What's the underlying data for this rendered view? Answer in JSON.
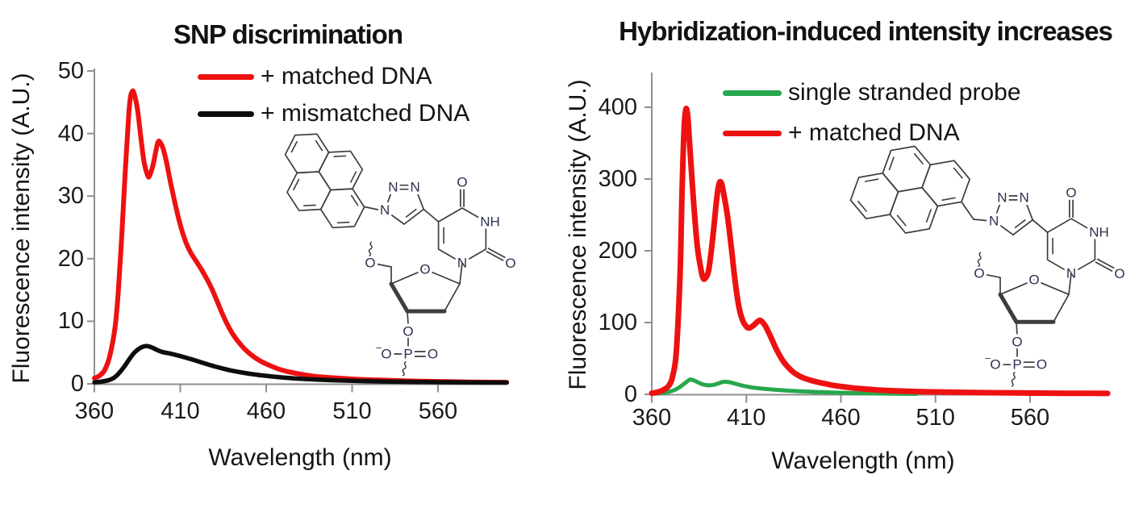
{
  "chart_data": [
    {
      "type": "line",
      "title": "SNP discrimination",
      "xlabel": "Wavelength (nm)",
      "ylabel": "Fluorescence intensity (A.U.)",
      "xlim": [
        360,
        600
      ],
      "ylim": [
        0,
        50
      ],
      "x_ticks": [
        360,
        410,
        460,
        510,
        560
      ],
      "y_ticks": [
        0,
        10,
        20,
        30,
        40,
        50
      ],
      "grid": false,
      "legend_position": "top-inside",
      "series": [
        {
          "name": "+ matched DNA",
          "color": "#ee1111",
          "width": 6,
          "points": [
            [
              360,
              0.9
            ],
            [
              363,
              1.3
            ],
            [
              366,
              2.2
            ],
            [
              369,
              4.5
            ],
            [
              372,
              9
            ],
            [
              374,
              15
            ],
            [
              376,
              24
            ],
            [
              378,
              34
            ],
            [
              380,
              43
            ],
            [
              381,
              45.8
            ],
            [
              382,
              46.7
            ],
            [
              383,
              46.5
            ],
            [
              385,
              44
            ],
            [
              387,
              39.5
            ],
            [
              389,
              35.3
            ],
            [
              391,
              33.3
            ],
            [
              392,
              33.2
            ],
            [
              394,
              34.8
            ],
            [
              396,
              37.5
            ],
            [
              397,
              38.6
            ],
            [
              398,
              38.7
            ],
            [
              400,
              37.6
            ],
            [
              402,
              35.4
            ],
            [
              404,
              32.6
            ],
            [
              407,
              28.8
            ],
            [
              410,
              25.4
            ],
            [
              413,
              22.8
            ],
            [
              416,
              21
            ],
            [
              419,
              19.7
            ],
            [
              422,
              18.4
            ],
            [
              425,
              17
            ],
            [
              428,
              15.4
            ],
            [
              431,
              13.5
            ],
            [
              434,
              11.5
            ],
            [
              437,
              9.7
            ],
            [
              440,
              8.2
            ],
            [
              443,
              7
            ],
            [
              447,
              5.7
            ],
            [
              451,
              4.7
            ],
            [
              455,
              3.9
            ],
            [
              459,
              3.3
            ],
            [
              464,
              2.7
            ],
            [
              469,
              2.2
            ],
            [
              475,
              1.8
            ],
            [
              482,
              1.45
            ],
            [
              490,
              1.15
            ],
            [
              500,
              0.95
            ],
            [
              512,
              0.75
            ],
            [
              526,
              0.6
            ],
            [
              542,
              0.47
            ],
            [
              560,
              0.37
            ],
            [
              578,
              0.3
            ],
            [
              600,
              0.25
            ]
          ]
        },
        {
          "name": "+ mismatched DNA",
          "color": "#0d0d0d",
          "width": 5.5,
          "points": [
            [
              360,
              0.25
            ],
            [
              364,
              0.35
            ],
            [
              368,
              0.55
            ],
            [
              371,
              0.9
            ],
            [
              374,
              1.6
            ],
            [
              377,
              2.6
            ],
            [
              380,
              3.8
            ],
            [
              383,
              4.9
            ],
            [
              386,
              5.6
            ],
            [
              388,
              5.9
            ],
            [
              390,
              6.05
            ],
            [
              392,
              5.95
            ],
            [
              394,
              5.75
            ],
            [
              397,
              5.35
            ],
            [
              400,
              5.05
            ],
            [
              403,
              4.9
            ],
            [
              406,
              4.72
            ],
            [
              409,
              4.5
            ],
            [
              412,
              4.28
            ],
            [
              415,
              4.05
            ],
            [
              418,
              3.8
            ],
            [
              422,
              3.45
            ],
            [
              426,
              3.1
            ],
            [
              430,
              2.78
            ],
            [
              435,
              2.42
            ],
            [
              440,
              2.1
            ],
            [
              446,
              1.8
            ],
            [
              452,
              1.55
            ],
            [
              459,
              1.3
            ],
            [
              467,
              1.08
            ],
            [
              476,
              0.88
            ],
            [
              486,
              0.72
            ],
            [
              498,
              0.58
            ],
            [
              512,
              0.47
            ],
            [
              528,
              0.38
            ],
            [
              545,
              0.31
            ],
            [
              562,
              0.26
            ],
            [
              580,
              0.22
            ],
            [
              600,
              0.2
            ]
          ]
        }
      ]
    },
    {
      "type": "line",
      "title": "Hybridization-induced intensity increases",
      "xlabel": "Wavelength (nm)",
      "ylabel": "Fluorescence intensity (A.U.)",
      "xlim": [
        360,
        601
      ],
      "ylim": [
        0,
        450
      ],
      "x_ticks": [
        360,
        410,
        460,
        510,
        560
      ],
      "y_ticks": [
        0,
        100,
        200,
        300,
        400
      ],
      "grid": false,
      "legend_position": "top-inside",
      "series": [
        {
          "name": "single stranded probe",
          "color": "#28a74c",
          "width": 5,
          "points": [
            [
              360,
              0.8
            ],
            [
              364,
              1.5
            ],
            [
              368,
              3
            ],
            [
              372,
              6
            ],
            [
              375,
              10.5
            ],
            [
              377,
              14.5
            ],
            [
              379,
              18.5
            ],
            [
              380,
              20.3
            ],
            [
              381,
              20.5
            ],
            [
              383,
              18.5
            ],
            [
              385,
              16
            ],
            [
              387,
              13.8
            ],
            [
              389,
              12.8
            ],
            [
              391,
              12.6
            ],
            [
              393,
              13.3
            ],
            [
              395,
              15
            ],
            [
              397,
              16.8
            ],
            [
              398,
              17.4
            ],
            [
              400,
              17.3
            ],
            [
              402,
              16.3
            ],
            [
              404,
              14.8
            ],
            [
              407,
              12.7
            ],
            [
              410,
              11
            ],
            [
              413,
              9.6
            ],
            [
              416,
              8.5
            ],
            [
              420,
              7.5
            ],
            [
              424,
              6.6
            ],
            [
              428,
              5.8
            ],
            [
              433,
              5
            ],
            [
              438,
              4.3
            ],
            [
              444,
              3.6
            ],
            [
              450,
              3
            ],
            [
              457,
              2.4
            ],
            [
              464,
              1.9
            ],
            [
              472,
              1.45
            ],
            [
              480,
              1.1
            ],
            [
              490,
              0.8
            ],
            [
              500,
              0.6
            ]
          ]
        },
        {
          "name": "+ matched DNA",
          "color": "#ee1111",
          "width": 7,
          "points": [
            [
              360,
              1.5
            ],
            [
              363,
              3
            ],
            [
              366,
              6
            ],
            [
              369,
              12
            ],
            [
              371,
              25
            ],
            [
              373,
              60
            ],
            [
              375,
              170
            ],
            [
              376,
              280
            ],
            [
              377,
              365
            ],
            [
              378,
              397
            ],
            [
              379,
              388
            ],
            [
              380,
              350
            ],
            [
              382,
              272
            ],
            [
              384,
              208
            ],
            [
              386,
              174
            ],
            [
              387,
              163
            ],
            [
              388,
              161
            ],
            [
              390,
              172
            ],
            [
              392,
              212
            ],
            [
              394,
              264
            ],
            [
              395,
              286
            ],
            [
              396,
              296
            ],
            [
              397,
              293
            ],
            [
              398,
              280
            ],
            [
              400,
              249
            ],
            [
              402,
              206
            ],
            [
              404,
              159
            ],
            [
              406,
              123
            ],
            [
              408,
              103
            ],
            [
              410,
              94.5
            ],
            [
              411,
              92.5
            ],
            [
              412,
              92.8
            ],
            [
              414,
              96.5
            ],
            [
              416,
              101.5
            ],
            [
              417,
              103
            ],
            [
              418,
              102
            ],
            [
              420,
              95.5
            ],
            [
              422,
              85
            ],
            [
              424,
              73.5
            ],
            [
              426,
              62
            ],
            [
              429,
              48
            ],
            [
              432,
              38
            ],
            [
              435,
              30.5
            ],
            [
              438,
              25.5
            ],
            [
              441,
              22
            ],
            [
              445,
              18.8
            ],
            [
              449,
              16.2
            ],
            [
              453,
              14
            ],
            [
              457,
              12
            ],
            [
              462,
              10.2
            ],
            [
              467,
              8.7
            ],
            [
              473,
              7.3
            ],
            [
              480,
              6
            ],
            [
              488,
              5
            ],
            [
              497,
              4.1
            ],
            [
              508,
              3.4
            ],
            [
              521,
              2.8
            ],
            [
              536,
              2.3
            ],
            [
              553,
              1.9
            ],
            [
              571,
              1.6
            ],
            [
              589,
              1.3
            ],
            [
              601,
              1.2
            ]
          ]
        }
      ]
    }
  ],
  "structures": {
    "atom_labels": {
      "N": "N",
      "NH": "NH",
      "O": "O",
      "P": "P",
      "minus": "−"
    }
  },
  "colors": {
    "axis": "#8f8f8f",
    "bond": "#3d3d3d",
    "atom_label": "#2c3152",
    "background": "#ffffff"
  }
}
